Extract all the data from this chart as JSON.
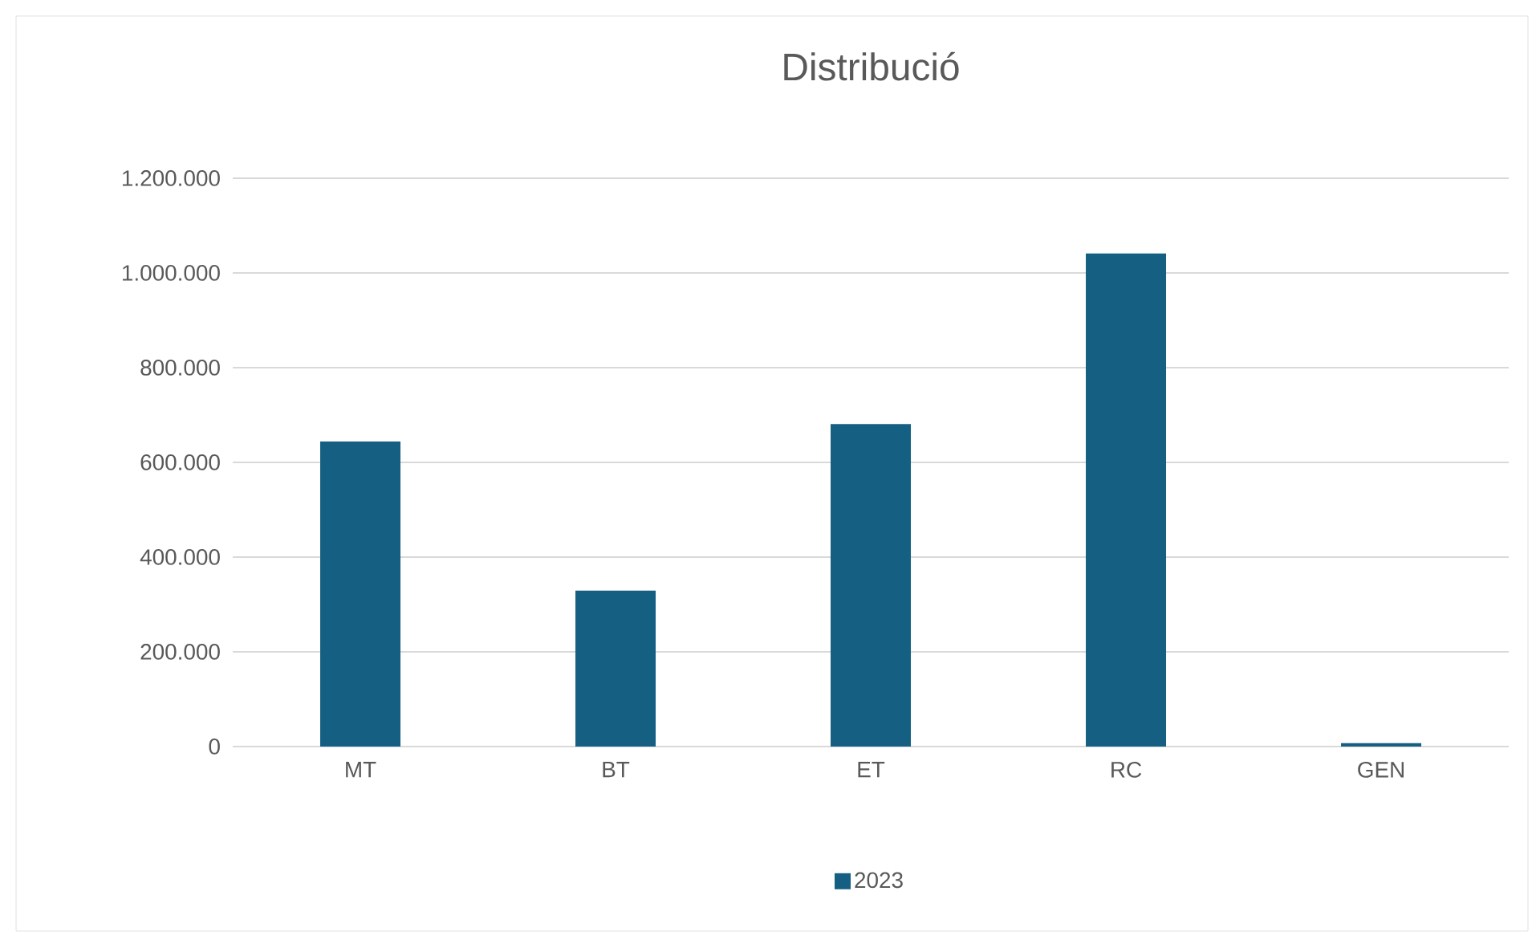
{
  "chart_data": {
    "type": "bar",
    "title": "Distribució",
    "categories": [
      "MT",
      "BT",
      "ET",
      "RC",
      "GEN"
    ],
    "series": [
      {
        "name": "2023",
        "color": "#156082",
        "values": [
          644000,
          329000,
          681000,
          1041000,
          7000
        ]
      }
    ],
    "ylim": [
      0,
      1200000
    ],
    "yticks": [
      0,
      {
        "value": 200000,
        "label": "200.000"
      },
      {
        "value": 400000,
        "label": "400.000"
      },
      {
        "value": 600000,
        "label": "600.000"
      },
      {
        "value": 800000,
        "label": "800.000"
      },
      {
        "value": 1000000,
        "label": "1.000.000"
      },
      {
        "value": 1200000,
        "label": "1.200.000"
      }
    ],
    "grid": "y",
    "legend": "bottom"
  }
}
